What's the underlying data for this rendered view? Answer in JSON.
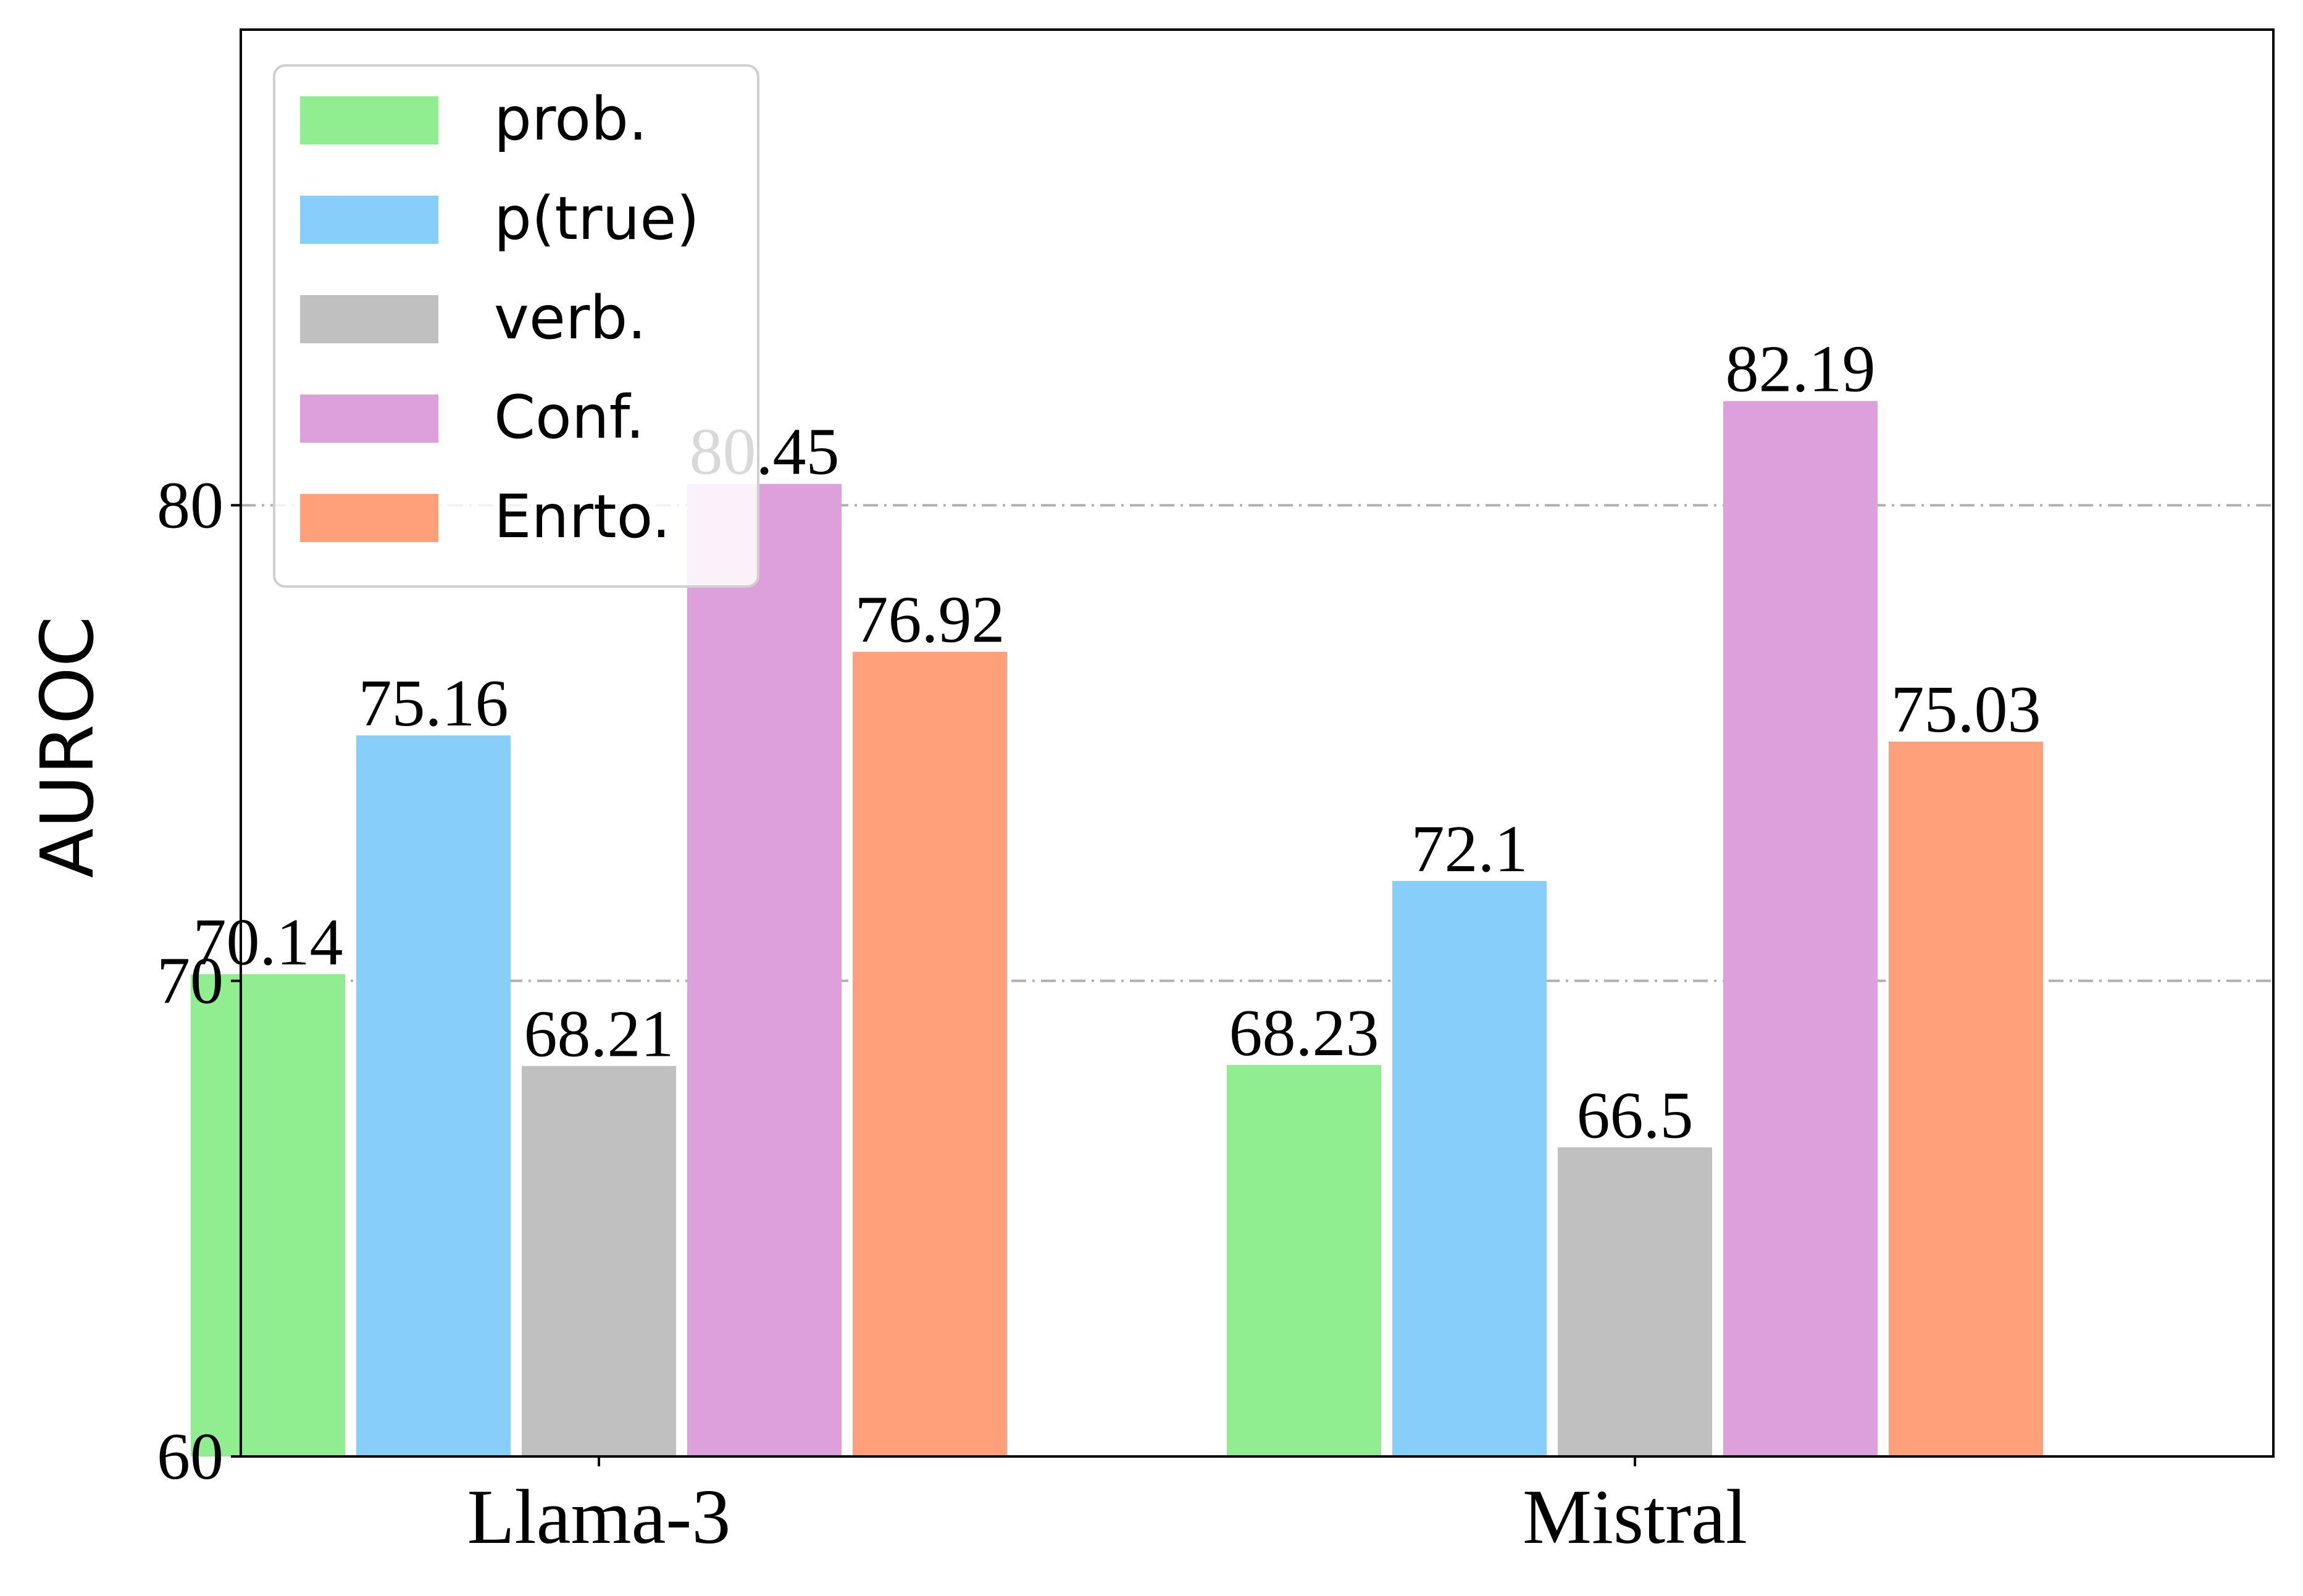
{
  "chart_data": {
    "type": "bar",
    "categories": [
      "Llama-3",
      "Mistral"
    ],
    "series": [
      {
        "name": "prob.",
        "values": [
          70.14,
          68.23
        ],
        "color": "#90ee90"
      },
      {
        "name": "p(true)",
        "values": [
          75.16,
          72.1
        ],
        "color": "#87cefa"
      },
      {
        "name": "verb.",
        "values": [
          68.21,
          66.5
        ],
        "color": "#c0c0c0"
      },
      {
        "name": "Conf.",
        "values": [
          80.45,
          82.19
        ],
        "color": "#dda0dd"
      },
      {
        "name": "Enrto.",
        "values": [
          76.92,
          75.03
        ],
        "color": "#ffa07a"
      }
    ],
    "data_labels": [
      [
        "70.14",
        "68.23"
      ],
      [
        "75.16",
        "72.1"
      ],
      [
        "68.21",
        "66.5"
      ],
      [
        "80.45",
        "82.19"
      ],
      [
        "76.92",
        "75.03"
      ]
    ],
    "ylabel": "AUROC",
    "ylim": [
      60,
      90
    ],
    "yticks": [
      60,
      70,
      80
    ],
    "grid": "horizontal dash-dot at major y ticks",
    "legend_position": "top-left"
  }
}
